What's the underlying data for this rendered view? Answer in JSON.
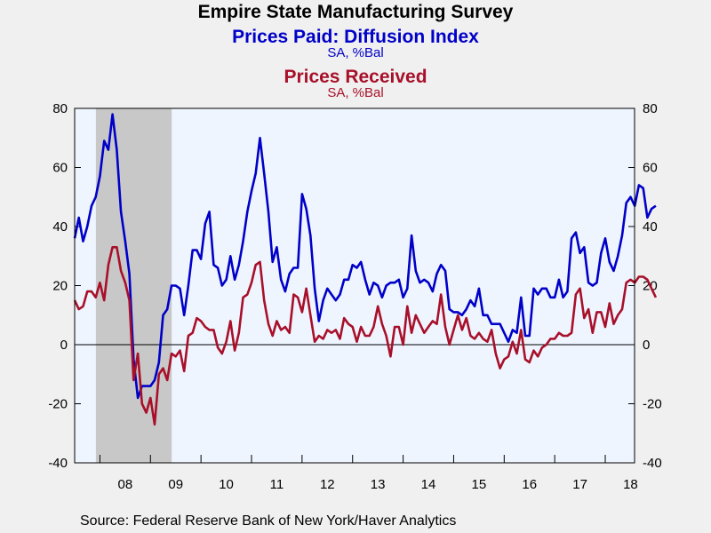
{
  "chart_data": {
    "type": "line",
    "title": "Empire State Manufacturing Survey",
    "xlabel": "",
    "ylabel": "",
    "ylim": [
      -40,
      80
    ],
    "yticks": [
      "80",
      "60",
      "40",
      "20",
      "0",
      "-20",
      "-40"
    ],
    "ytick_values": [
      80,
      60,
      40,
      20,
      0,
      -20,
      -40
    ],
    "xlim": [
      2007.5,
      2018.58
    ],
    "xticks": [
      {
        "label": "08",
        "x": 2008.5
      },
      {
        "label": "09",
        "x": 2009.5
      },
      {
        "label": "10",
        "x": 2010.5
      },
      {
        "label": "11",
        "x": 2011.5
      },
      {
        "label": "12",
        "x": 2012.5
      },
      {
        "label": "13",
        "x": 2013.5
      },
      {
        "label": "14",
        "x": 2014.5
      },
      {
        "label": "15",
        "x": 2015.5
      },
      {
        "label": "16",
        "x": 2016.5
      },
      {
        "label": "17",
        "x": 2017.5
      },
      {
        "label": "18",
        "x": 2018.5
      }
    ],
    "recession": {
      "start": 2007.92,
      "end": 2009.42
    },
    "grid": false,
    "zero_line": true,
    "series": [
      {
        "name": "Prices Paid: Diffusion Index",
        "units": "SA, %Bal",
        "color": "#0000c8",
        "start": 2007.5,
        "values": [
          36,
          43,
          35,
          40,
          47,
          50,
          57,
          69,
          66,
          78,
          66,
          45,
          35,
          24,
          -5,
          -18,
          -14,
          -14,
          -14,
          -12,
          -6,
          10,
          12,
          20,
          20,
          19,
          10,
          20,
          32,
          32,
          29,
          41,
          45,
          27,
          26,
          20,
          22,
          30,
          22,
          27,
          35,
          45,
          52,
          58,
          70,
          58,
          45,
          28,
          33,
          22,
          18,
          24,
          26,
          26,
          51,
          46,
          37,
          19,
          8,
          15,
          19,
          17,
          15,
          17,
          22,
          22,
          27,
          26,
          28,
          22,
          17,
          21,
          20,
          16,
          20,
          21,
          21,
          22,
          16,
          19,
          37,
          25,
          21,
          22,
          21,
          18,
          24,
          27,
          25,
          12,
          11,
          11,
          10,
          12,
          15,
          13,
          19,
          10,
          10,
          7,
          7,
          7,
          4,
          1,
          5,
          4,
          16,
          3,
          3,
          19,
          17,
          19,
          19,
          16,
          16,
          22,
          16,
          18,
          36,
          38,
          31,
          33,
          21,
          20,
          21,
          31,
          36,
          28,
          25,
          30,
          37,
          48,
          50,
          47,
          54,
          53,
          43,
          46,
          47
        ]
      },
      {
        "name": "Prices Received",
        "units": "SA, %Bal",
        "color": "#a8102a",
        "start": 2007.5,
        "values": [
          15,
          12,
          13,
          18,
          18,
          16,
          21,
          15,
          27,
          33,
          33,
          25,
          21,
          15,
          -12,
          -3,
          -20,
          -23,
          -18,
          -27,
          -10,
          -8,
          -12,
          -3,
          -4,
          -2,
          -9,
          3,
          4,
          9,
          8,
          6,
          5,
          5,
          -1,
          -3,
          1,
          8,
          -2,
          4,
          16,
          17,
          21,
          27,
          28,
          15,
          7,
          3,
          8,
          5,
          6,
          4,
          17,
          16,
          11,
          19,
          10,
          1,
          3,
          2,
          5,
          4,
          5,
          2,
          9,
          7,
          6,
          1,
          6,
          3,
          3,
          6,
          13,
          7,
          3,
          -4,
          6,
          6,
          0,
          13,
          4,
          10,
          7,
          4,
          6,
          8,
          7,
          17,
          6,
          0,
          5,
          10,
          5,
          9,
          3,
          2,
          4,
          2,
          1,
          5,
          -3,
          -8,
          -5,
          -4,
          1,
          -3,
          5,
          -5,
          -6,
          -2,
          -4,
          -1,
          0,
          2,
          2,
          4,
          3,
          3,
          4,
          17,
          19,
          9,
          12,
          4,
          11,
          11,
          6,
          14,
          7,
          10,
          12,
          21,
          22,
          21,
          23,
          23,
          22,
          19,
          16
        ]
      }
    ]
  },
  "header": {
    "title": "Empire State Manufacturing Survey",
    "series1_name": "Prices Paid: Diffusion Index",
    "series1_units": "SA, %Bal",
    "series2_name": "Prices Received",
    "series2_units": "SA, %Bal"
  },
  "footer": {
    "source": "Source:  Federal Reserve Bank of New York/Haver Analytics"
  },
  "colors": {
    "page_bg": "#f0f0f0",
    "plot_bg": "#eef5ff",
    "recession": "#c8c8c8",
    "series1": "#0000c8",
    "series2": "#a8102a"
  }
}
